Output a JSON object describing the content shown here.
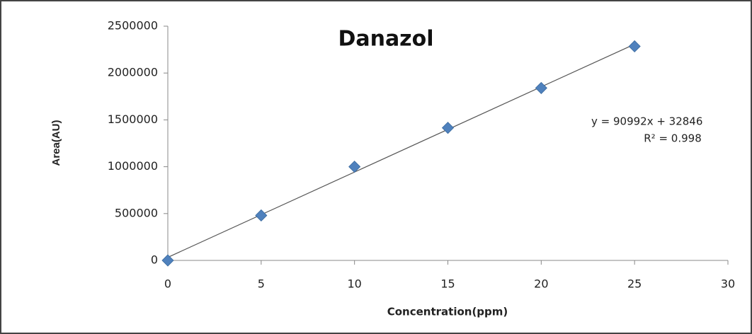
{
  "chart_data": {
    "type": "scatter",
    "title": "Danazol",
    "x_label": "Concentration(ppm)",
    "y_label": "Area(AU)",
    "series": [
      {
        "name": "Danazol",
        "color": "#4f81bd",
        "x": [
          0,
          5,
          10,
          15,
          20,
          25
        ],
        "values": [
          0,
          480000,
          1000000,
          1415000,
          1840000,
          2285000
        ]
      }
    ],
    "trendline": {
      "slope": 90992,
      "intercept": 32846,
      "color": "#555555"
    },
    "annotations": [
      "y = 90992x + 32846",
      "R² = 0.998"
    ],
    "xlim": [
      0,
      30
    ],
    "xticks": [
      0,
      5,
      10,
      15,
      20,
      25,
      30
    ],
    "ylim": [
      0,
      2500000
    ],
    "yticks": [
      0,
      500000,
      1000000,
      1500000,
      2000000,
      2500000
    ],
    "grid": false
  }
}
